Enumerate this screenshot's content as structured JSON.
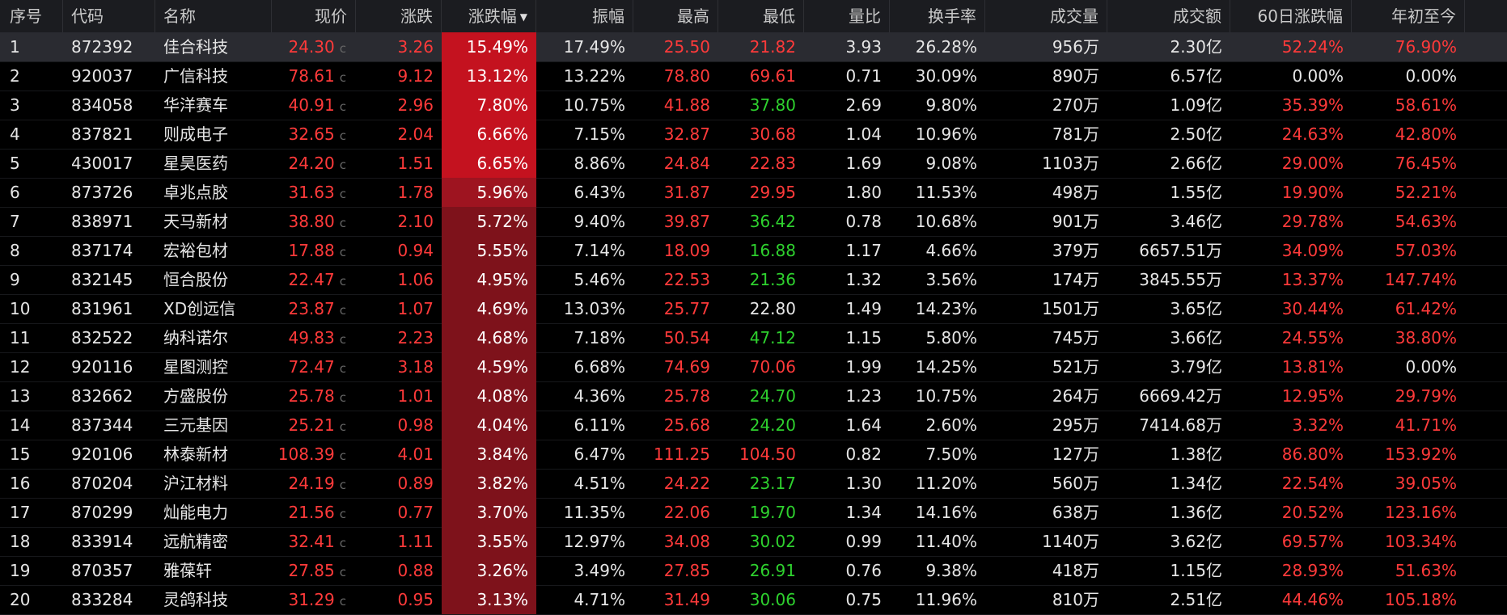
{
  "colors": {
    "up": "#ff3a3a",
    "down": "#2ed12e",
    "flat": "#e6e6e6",
    "pct_bg_strong": "#c4121f",
    "pct_bg_mid": "#9e1420",
    "pct_bg_weak": "#7e121b"
  },
  "header": {
    "cols": [
      "序号",
      "代码",
      "名称",
      "现价",
      "涨跌",
      "涨跌幅",
      "振幅",
      "最高",
      "最低",
      "量比",
      "换手率",
      "成交量",
      "成交额",
      "60日涨跌幅",
      "年初至今"
    ],
    "sort_icon": "sort-desc-icon"
  },
  "rows": [
    {
      "idx": "1",
      "code": "872392",
      "name": "佳合科技",
      "price": "24.30",
      "chg": "3.26",
      "pct": "15.49%",
      "amp": "17.49%",
      "high": "25.50",
      "low": "21.82",
      "vr": "3.93",
      "turn": "26.28%",
      "vol": "956万",
      "amt": "2.30亿",
      "d60": "52.24%",
      "ytd": "76.90%",
      "lowc": "up",
      "d60c": "up",
      "ytdc": "up"
    },
    {
      "idx": "2",
      "code": "920037",
      "name": "广信科技",
      "price": "78.61",
      "chg": "9.12",
      "pct": "13.12%",
      "amp": "13.22%",
      "high": "78.80",
      "low": "69.61",
      "vr": "0.71",
      "turn": "30.09%",
      "vol": "890万",
      "amt": "6.57亿",
      "d60": "0.00%",
      "ytd": "0.00%",
      "lowc": "up",
      "d60c": "flat",
      "ytdc": "flat"
    },
    {
      "idx": "3",
      "code": "834058",
      "name": "华洋赛车",
      "price": "40.91",
      "chg": "2.96",
      "pct": "7.80%",
      "amp": "10.75%",
      "high": "41.88",
      "low": "37.80",
      "vr": "2.69",
      "turn": "9.80%",
      "vol": "270万",
      "amt": "1.09亿",
      "d60": "35.39%",
      "ytd": "58.61%",
      "lowc": "down",
      "d60c": "up",
      "ytdc": "up"
    },
    {
      "idx": "4",
      "code": "837821",
      "name": "则成电子",
      "price": "32.65",
      "chg": "2.04",
      "pct": "6.66%",
      "amp": "7.15%",
      "high": "32.87",
      "low": "30.68",
      "vr": "1.04",
      "turn": "10.96%",
      "vol": "781万",
      "amt": "2.50亿",
      "d60": "24.63%",
      "ytd": "42.80%",
      "lowc": "up",
      "d60c": "up",
      "ytdc": "up"
    },
    {
      "idx": "5",
      "code": "430017",
      "name": "星昊医药",
      "price": "24.20",
      "chg": "1.51",
      "pct": "6.65%",
      "amp": "8.86%",
      "high": "24.84",
      "low": "22.83",
      "vr": "1.69",
      "turn": "9.08%",
      "vol": "1103万",
      "amt": "2.66亿",
      "d60": "29.00%",
      "ytd": "76.45%",
      "lowc": "up",
      "d60c": "up",
      "ytdc": "up"
    },
    {
      "idx": "6",
      "code": "873726",
      "name": "卓兆点胶",
      "price": "31.63",
      "chg": "1.78",
      "pct": "5.96%",
      "amp": "6.43%",
      "high": "31.87",
      "low": "29.95",
      "vr": "1.80",
      "turn": "11.53%",
      "vol": "498万",
      "amt": "1.55亿",
      "d60": "19.90%",
      "ytd": "52.21%",
      "lowc": "up",
      "d60c": "up",
      "ytdc": "up"
    },
    {
      "idx": "7",
      "code": "838971",
      "name": "天马新材",
      "price": "38.80",
      "chg": "2.10",
      "pct": "5.72%",
      "amp": "9.40%",
      "high": "39.87",
      "low": "36.42",
      "vr": "0.78",
      "turn": "10.68%",
      "vol": "901万",
      "amt": "3.46亿",
      "d60": "29.78%",
      "ytd": "54.63%",
      "lowc": "down",
      "d60c": "up",
      "ytdc": "up"
    },
    {
      "idx": "8",
      "code": "837174",
      "name": "宏裕包材",
      "price": "17.88",
      "chg": "0.94",
      "pct": "5.55%",
      "amp": "7.14%",
      "high": "18.09",
      "low": "16.88",
      "vr": "1.17",
      "turn": "4.66%",
      "vol": "379万",
      "amt": "6657.51万",
      "d60": "34.09%",
      "ytd": "57.03%",
      "lowc": "down",
      "d60c": "up",
      "ytdc": "up"
    },
    {
      "idx": "9",
      "code": "832145",
      "name": "恒合股份",
      "price": "22.47",
      "chg": "1.06",
      "pct": "4.95%",
      "amp": "5.46%",
      "high": "22.53",
      "low": "21.36",
      "vr": "1.32",
      "turn": "3.56%",
      "vol": "174万",
      "amt": "3845.55万",
      "d60": "13.37%",
      "ytd": "147.74%",
      "lowc": "down",
      "d60c": "up",
      "ytdc": "up"
    },
    {
      "idx": "10",
      "code": "831961",
      "name": "XD创远信",
      "price": "23.87",
      "chg": "1.07",
      "pct": "4.69%",
      "amp": "13.03%",
      "high": "25.77",
      "low": "22.80",
      "vr": "1.49",
      "turn": "14.23%",
      "vol": "1501万",
      "amt": "3.65亿",
      "d60": "30.44%",
      "ytd": "61.42%",
      "lowc": "flat",
      "d60c": "up",
      "ytdc": "up"
    },
    {
      "idx": "11",
      "code": "832522",
      "name": "纳科诺尔",
      "price": "49.83",
      "chg": "2.23",
      "pct": "4.68%",
      "amp": "7.18%",
      "high": "50.54",
      "low": "47.12",
      "vr": "1.15",
      "turn": "5.80%",
      "vol": "745万",
      "amt": "3.66亿",
      "d60": "24.55%",
      "ytd": "38.80%",
      "lowc": "down",
      "d60c": "up",
      "ytdc": "up"
    },
    {
      "idx": "12",
      "code": "920116",
      "name": "星图测控",
      "price": "72.47",
      "chg": "3.18",
      "pct": "4.59%",
      "amp": "6.68%",
      "high": "74.69",
      "low": "70.06",
      "vr": "1.99",
      "turn": "14.25%",
      "vol": "521万",
      "amt": "3.79亿",
      "d60": "13.81%",
      "ytd": "0.00%",
      "lowc": "up",
      "d60c": "up",
      "ytdc": "flat"
    },
    {
      "idx": "13",
      "code": "832662",
      "name": "方盛股份",
      "price": "25.78",
      "chg": "1.01",
      "pct": "4.08%",
      "amp": "4.36%",
      "high": "25.78",
      "low": "24.70",
      "vr": "1.23",
      "turn": "10.75%",
      "vol": "264万",
      "amt": "6669.42万",
      "d60": "12.95%",
      "ytd": "29.79%",
      "lowc": "down",
      "d60c": "up",
      "ytdc": "up"
    },
    {
      "idx": "14",
      "code": "837344",
      "name": "三元基因",
      "price": "25.21",
      "chg": "0.98",
      "pct": "4.04%",
      "amp": "6.11%",
      "high": "25.68",
      "low": "24.20",
      "vr": "1.64",
      "turn": "2.60%",
      "vol": "295万",
      "amt": "7414.68万",
      "d60": "3.32%",
      "ytd": "41.71%",
      "lowc": "down",
      "d60c": "up",
      "ytdc": "up"
    },
    {
      "idx": "15",
      "code": "920106",
      "name": "林泰新材",
      "price": "108.39",
      "chg": "4.01",
      "pct": "3.84%",
      "amp": "6.47%",
      "high": "111.25",
      "low": "104.50",
      "vr": "0.82",
      "turn": "7.50%",
      "vol": "127万",
      "amt": "1.38亿",
      "d60": "86.80%",
      "ytd": "153.92%",
      "lowc": "up",
      "d60c": "up",
      "ytdc": "up"
    },
    {
      "idx": "16",
      "code": "870204",
      "name": "沪江材料",
      "price": "24.19",
      "chg": "0.89",
      "pct": "3.82%",
      "amp": "4.51%",
      "high": "24.22",
      "low": "23.17",
      "vr": "1.30",
      "turn": "11.20%",
      "vol": "560万",
      "amt": "1.34亿",
      "d60": "22.54%",
      "ytd": "39.05%",
      "lowc": "down",
      "d60c": "up",
      "ytdc": "up"
    },
    {
      "idx": "17",
      "code": "870299",
      "name": "灿能电力",
      "price": "21.56",
      "chg": "0.77",
      "pct": "3.70%",
      "amp": "11.35%",
      "high": "22.06",
      "low": "19.70",
      "vr": "1.34",
      "turn": "14.16%",
      "vol": "638万",
      "amt": "1.36亿",
      "d60": "20.52%",
      "ytd": "123.16%",
      "lowc": "down",
      "d60c": "up",
      "ytdc": "up"
    },
    {
      "idx": "18",
      "code": "833914",
      "name": "远航精密",
      "price": "32.41",
      "chg": "1.11",
      "pct": "3.55%",
      "amp": "12.97%",
      "high": "34.08",
      "low": "30.02",
      "vr": "0.99",
      "turn": "11.40%",
      "vol": "1140万",
      "amt": "3.62亿",
      "d60": "69.57%",
      "ytd": "103.34%",
      "lowc": "down",
      "d60c": "up",
      "ytdc": "up"
    },
    {
      "idx": "19",
      "code": "870357",
      "name": "雅葆轩",
      "price": "27.85",
      "chg": "0.88",
      "pct": "3.26%",
      "amp": "3.49%",
      "high": "27.85",
      "low": "26.91",
      "vr": "0.76",
      "turn": "9.38%",
      "vol": "418万",
      "amt": "1.15亿",
      "d60": "28.93%",
      "ytd": "51.63%",
      "lowc": "down",
      "d60c": "up",
      "ytdc": "up"
    },
    {
      "idx": "20",
      "code": "833284",
      "name": "灵鸽科技",
      "price": "31.29",
      "chg": "0.95",
      "pct": "3.13%",
      "amp": "4.71%",
      "high": "31.49",
      "low": "30.06",
      "vr": "0.75",
      "turn": "11.96%",
      "vol": "810万",
      "amt": "2.51亿",
      "d60": "44.46%",
      "ytd": "105.18%",
      "lowc": "down",
      "d60c": "up",
      "ytdc": "up"
    }
  ]
}
